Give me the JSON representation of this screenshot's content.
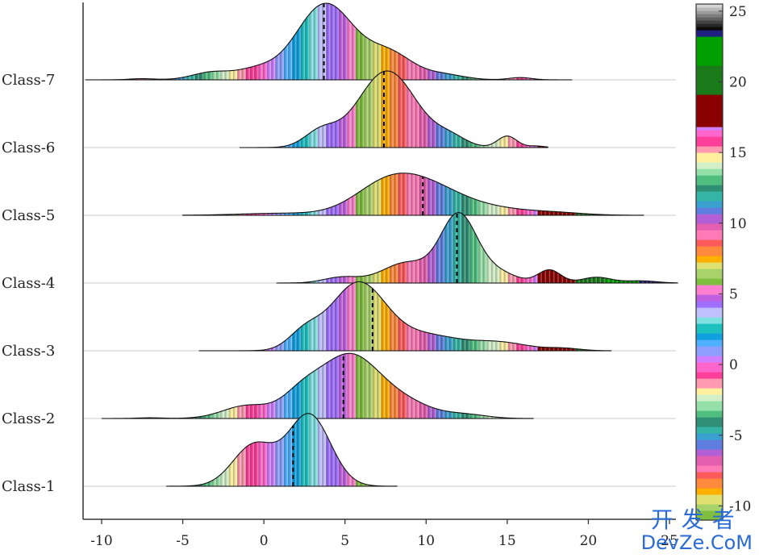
{
  "chart_data": {
    "type": "ridgeline",
    "xlim": [
      -11,
      25.5
    ],
    "x_ticks": [
      -10,
      -5,
      0,
      5,
      10,
      15,
      20,
      25
    ],
    "classes": [
      {
        "name": "Class-1",
        "range": [
          -6,
          8.2
        ],
        "median": 1.8,
        "peaks": [
          [
            -0.6,
            1.3,
            0.55
          ],
          [
            2.8,
            1.3,
            0.95
          ]
        ]
      },
      {
        "name": "Class-2",
        "range": [
          -10,
          16.6
        ],
        "median": 4.9,
        "peaks": [
          [
            -1.0,
            1.5,
            0.18
          ],
          [
            2.3,
            1.2,
            0.28
          ],
          [
            5.2,
            1.8,
            0.85
          ],
          [
            8.5,
            1.8,
            0.22
          ],
          [
            12.5,
            1.3,
            0.05
          ],
          [
            -7.0,
            0.8,
            0.01
          ]
        ]
      },
      {
        "name": "Class-3",
        "range": [
          -4,
          21.4
        ],
        "median": 6.7,
        "peaks": [
          [
            2.5,
            1.0,
            0.22
          ],
          [
            5.8,
            1.7,
            0.9
          ],
          [
            10.0,
            2.0,
            0.2
          ],
          [
            14.5,
            1.8,
            0.11
          ],
          [
            18.5,
            1.0,
            0.03
          ]
        ]
      },
      {
        "name": "Class-4",
        "range": [
          0.8,
          25.5
        ],
        "median": 11.9,
        "peaks": [
          [
            4.8,
            1.1,
            0.08
          ],
          [
            8.8,
            1.5,
            0.28
          ],
          [
            12.0,
            1.1,
            0.92
          ],
          [
            14.3,
            1.2,
            0.15
          ],
          [
            17.6,
            0.7,
            0.18
          ],
          [
            20.5,
            0.9,
            0.08
          ],
          [
            23.2,
            1.0,
            0.03
          ]
        ]
      },
      {
        "name": "Class-5",
        "range": [
          -5,
          23.4
        ],
        "median": 9.8,
        "peaks": [
          [
            1.0,
            2.5,
            0.04
          ],
          [
            7.5,
            2.0,
            0.55
          ],
          [
            10.3,
            2.2,
            0.5
          ],
          [
            14.5,
            2.0,
            0.1
          ],
          [
            18.0,
            1.8,
            0.05
          ]
        ]
      },
      {
        "name": "Class-6",
        "range": [
          -1.5,
          17.5
        ],
        "median": 7.4,
        "peaks": [
          [
            3.5,
            1.0,
            0.2
          ],
          [
            7.6,
            1.8,
            1.0
          ],
          [
            11.5,
            1.0,
            0.12
          ],
          [
            15.0,
            0.6,
            0.15
          ],
          [
            16.8,
            0.5,
            0.02
          ]
        ]
      },
      {
        "name": "Class-7",
        "range": [
          -11,
          19
        ],
        "median": 3.7,
        "peaks": [
          [
            -3.2,
            1.2,
            0.1
          ],
          [
            -0.5,
            1.2,
            0.12
          ],
          [
            3.8,
            1.8,
            1.0
          ],
          [
            7.8,
            1.4,
            0.32
          ],
          [
            11.0,
            1.3,
            0.07
          ],
          [
            15.8,
            0.7,
            0.03
          ],
          [
            -7.5,
            0.8,
            0.015
          ]
        ]
      }
    ],
    "colorbar": {
      "ticks": [
        25,
        20,
        15,
        10,
        5,
        0,
        -5,
        -10
      ],
      "range": [
        -11,
        25.5
      ]
    }
  },
  "watermark": {
    "cn": "开发者",
    "en": "DevZe.CoM"
  }
}
